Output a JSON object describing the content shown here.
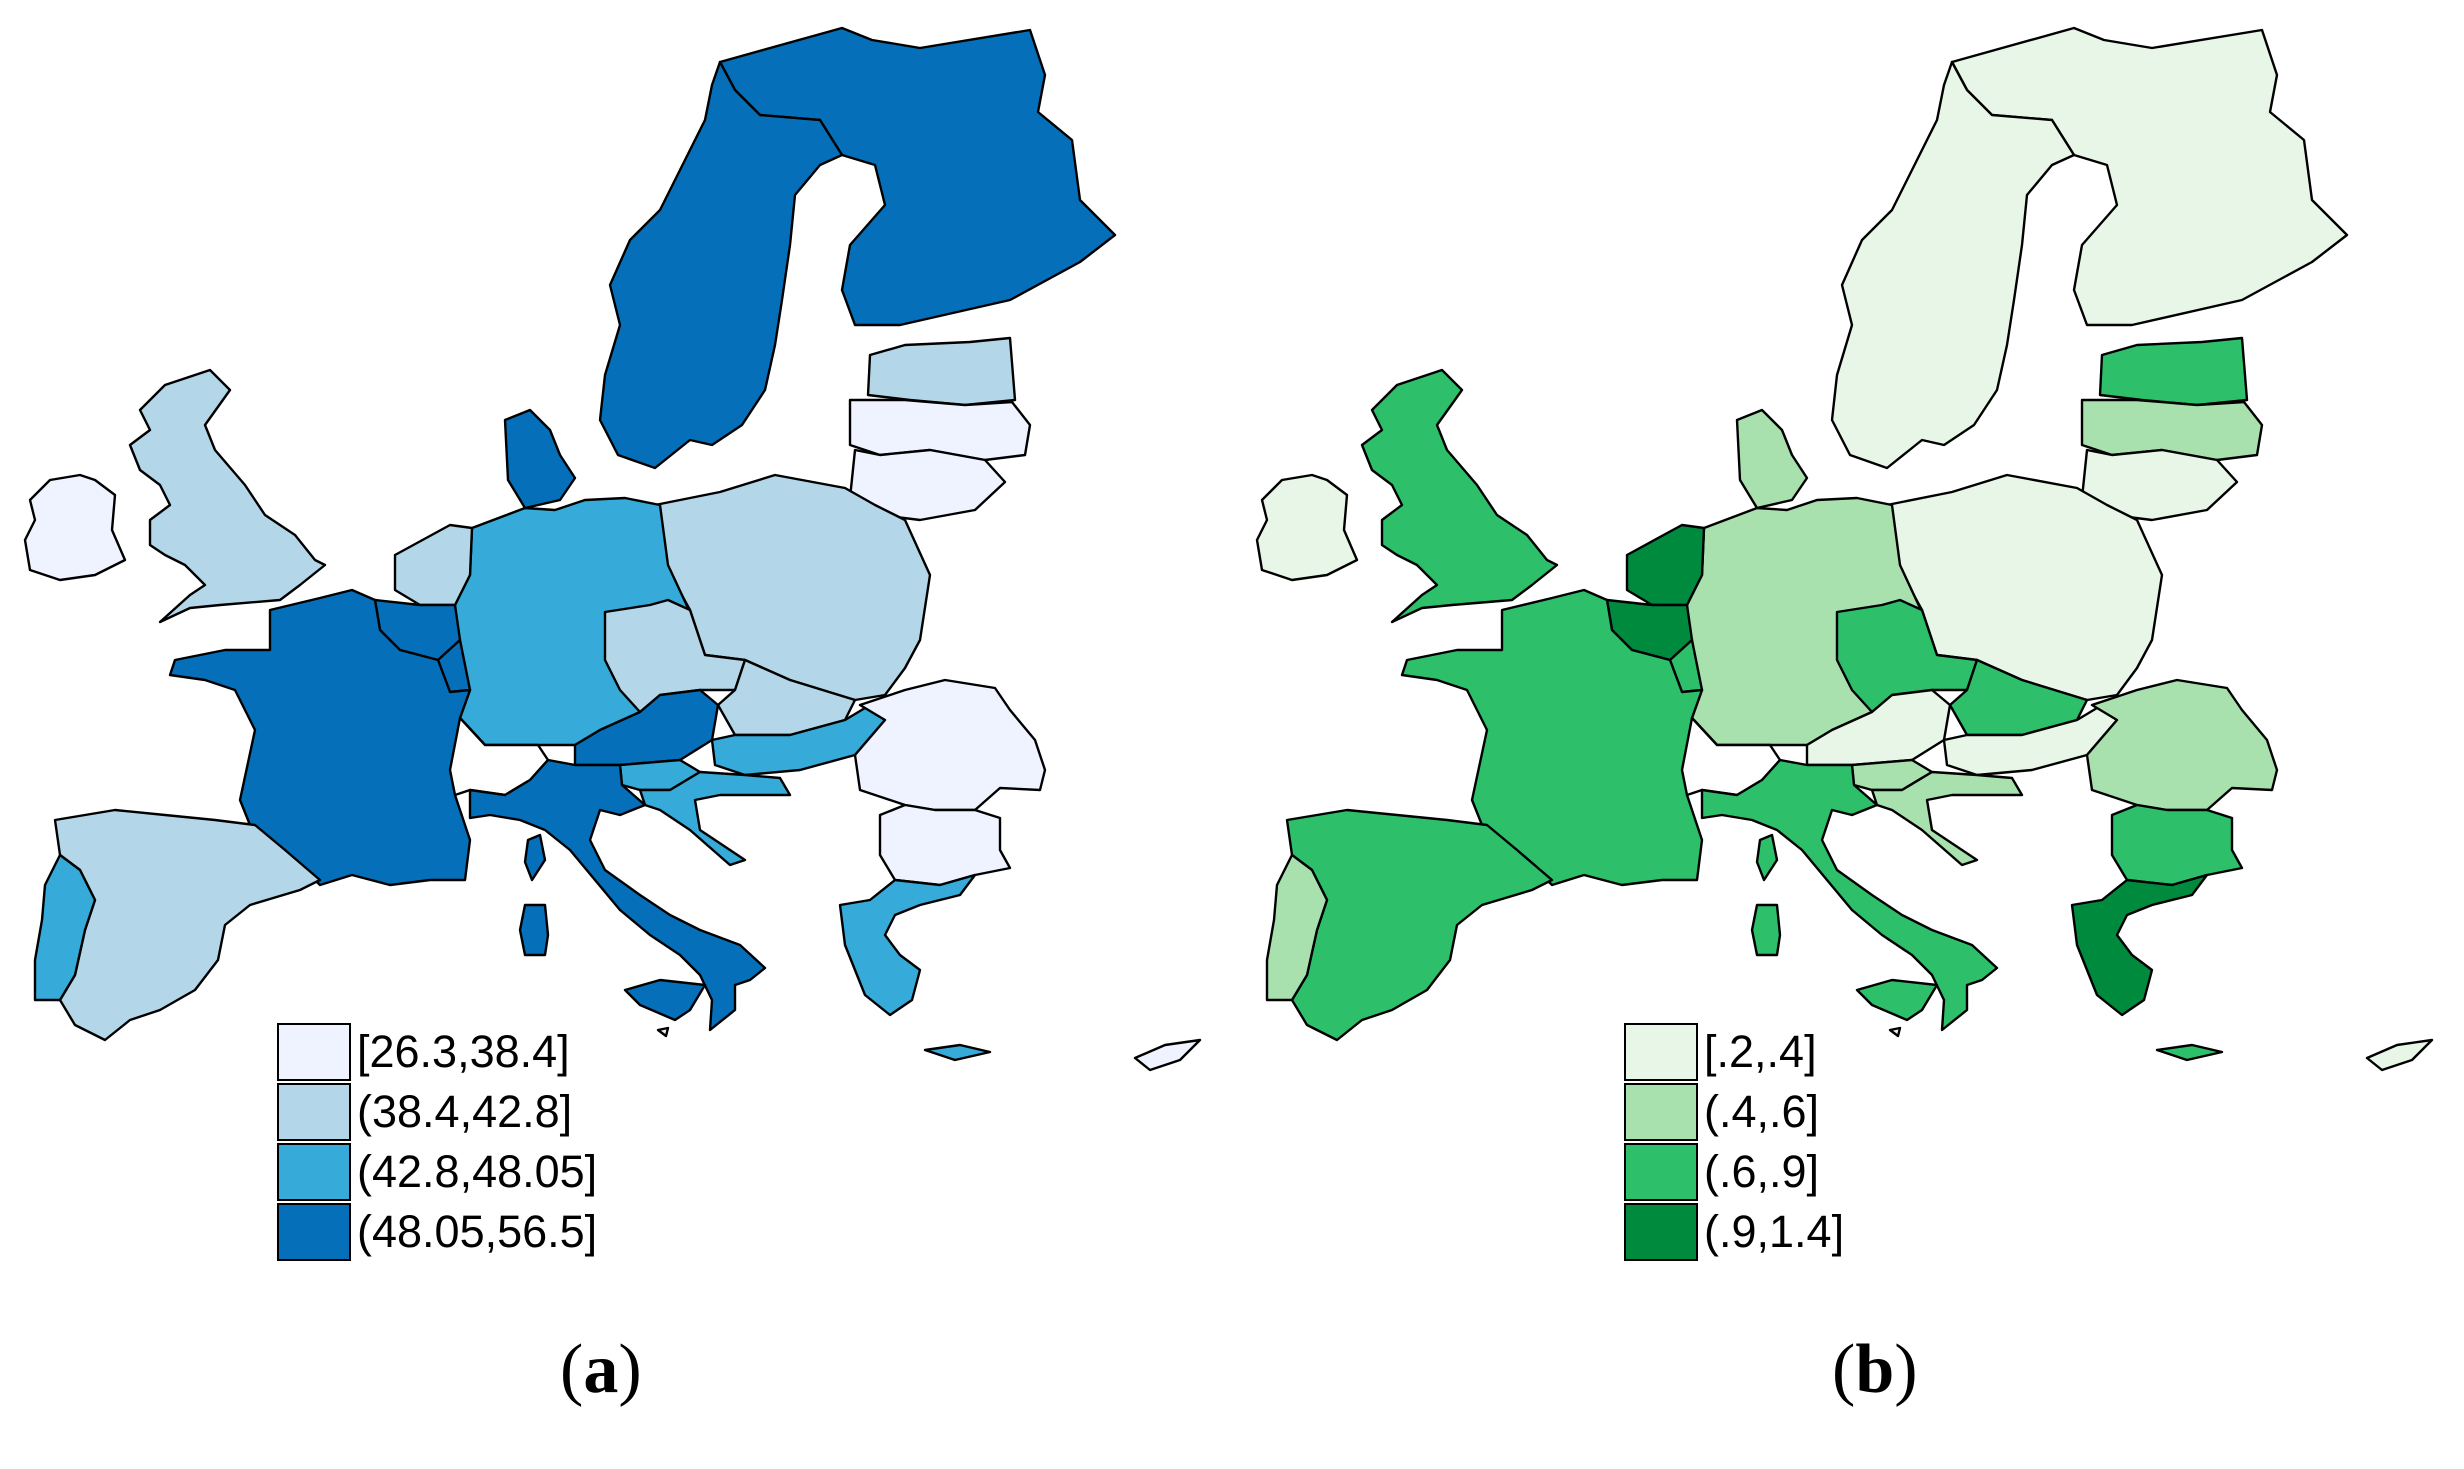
{
  "panels": [
    {
      "id": "a",
      "caption_letter": "a",
      "legend": [
        {
          "label": "[26.3,38.4]",
          "color": "#eff3ff"
        },
        {
          "label": "(38.4,42.8]",
          "color": "#b3d7e8"
        },
        {
          "label": "(42.8,48.05]",
          "color": "#36aad8"
        },
        {
          "label": "(48.05,56.5]",
          "color": "#0570b9"
        }
      ],
      "class_by_country": {
        "ireland": 0,
        "uk": 1,
        "portugal": 2,
        "spain": 1,
        "france": 3,
        "belgium": 3,
        "netherlands": 1,
        "luxembourg": 3,
        "germany": 2,
        "denmark": 3,
        "sweden": 3,
        "finland": 3,
        "estonia": 1,
        "latvia": 0,
        "lithuania": 0,
        "poland": 1,
        "czechia": 1,
        "slovakia": 1,
        "austria": 3,
        "hungary": 2,
        "slovenia": 2,
        "croatia": 2,
        "romania": 0,
        "bulgaria": 0,
        "greece": 2,
        "italy": 3,
        "corsica": 3,
        "sardinia": 3,
        "sicily": 3,
        "cyprus": 0,
        "malta": 0,
        "crete": 2,
        "switzerland": null
      }
    },
    {
      "id": "b",
      "caption_letter": "b",
      "legend": [
        {
          "label": "[.2,.4]",
          "color": "#e8f6e8"
        },
        {
          "label": "(.4,.6]",
          "color": "#a8e0ae"
        },
        {
          "label": "(.6,.9]",
          "color": "#2ebf6a"
        },
        {
          "label": "(.9,1.4]",
          "color": "#008a3e"
        }
      ],
      "class_by_country": {
        "ireland": 0,
        "uk": 2,
        "portugal": 1,
        "spain": 2,
        "france": 2,
        "belgium": 3,
        "netherlands": 3,
        "luxembourg": 2,
        "germany": 1,
        "denmark": 1,
        "sweden": 0,
        "finland": 0,
        "estonia": 2,
        "latvia": 1,
        "lithuania": 0,
        "poland": 0,
        "czechia": 2,
        "slovakia": 2,
        "austria": 0,
        "hungary": 0,
        "slovenia": 1,
        "croatia": 1,
        "romania": 1,
        "bulgaria": 2,
        "greece": 3,
        "italy": 2,
        "corsica": 2,
        "sardinia": 2,
        "sicily": 2,
        "cyprus": 0,
        "malta": 0,
        "crete": 2,
        "switzerland": null
      }
    }
  ]
}
